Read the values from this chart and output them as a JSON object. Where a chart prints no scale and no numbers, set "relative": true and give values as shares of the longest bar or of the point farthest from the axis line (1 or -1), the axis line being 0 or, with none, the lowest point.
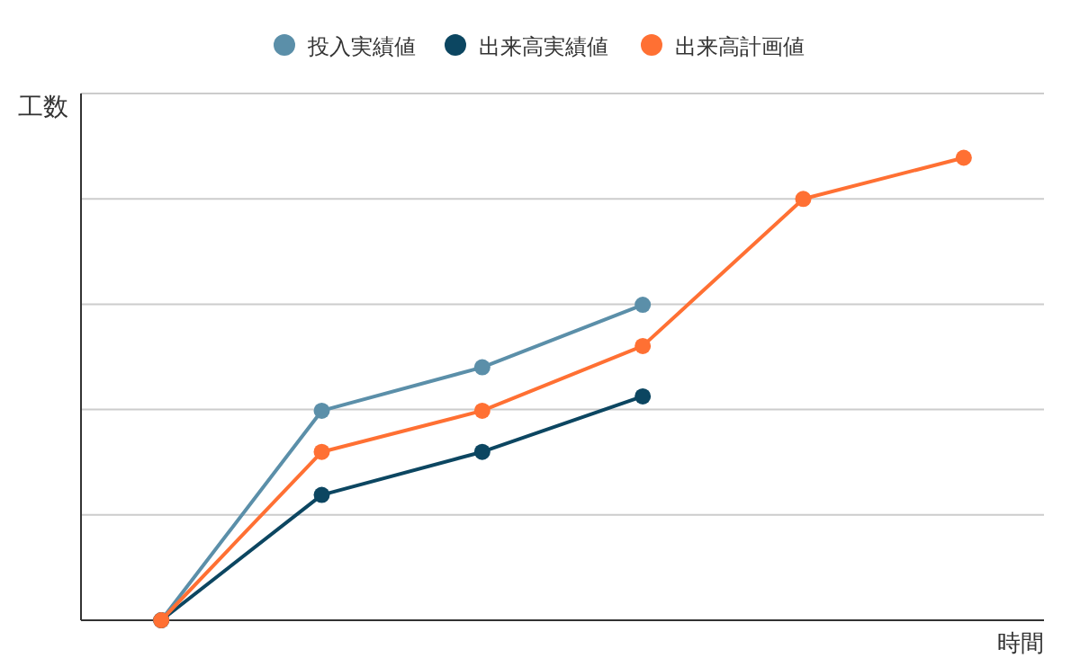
{
  "chart_data": {
    "type": "line",
    "relative": true,
    "xlabel": "時間",
    "ylabel": "工数",
    "categories": [
      null,
      null,
      null,
      null,
      null,
      null
    ],
    "series": [
      {
        "name": "投入実績値",
        "color": "#5b8fa9",
        "values": [
          0,
          0.453,
          0.547,
          0.682,
          null,
          null
        ]
      },
      {
        "name": "出来高実績値",
        "color": "#0c4661",
        "values": [
          0,
          0.271,
          0.364,
          0.484,
          null,
          null
        ]
      },
      {
        "name": "出来高計画値",
        "color": "#ff7033",
        "values": [
          0,
          0.364,
          0.453,
          0.593,
          0.911,
          1
        ]
      }
    ],
    "grid": "y",
    "legend": "top",
    "marker": "circle",
    "line_style": "solid"
  }
}
